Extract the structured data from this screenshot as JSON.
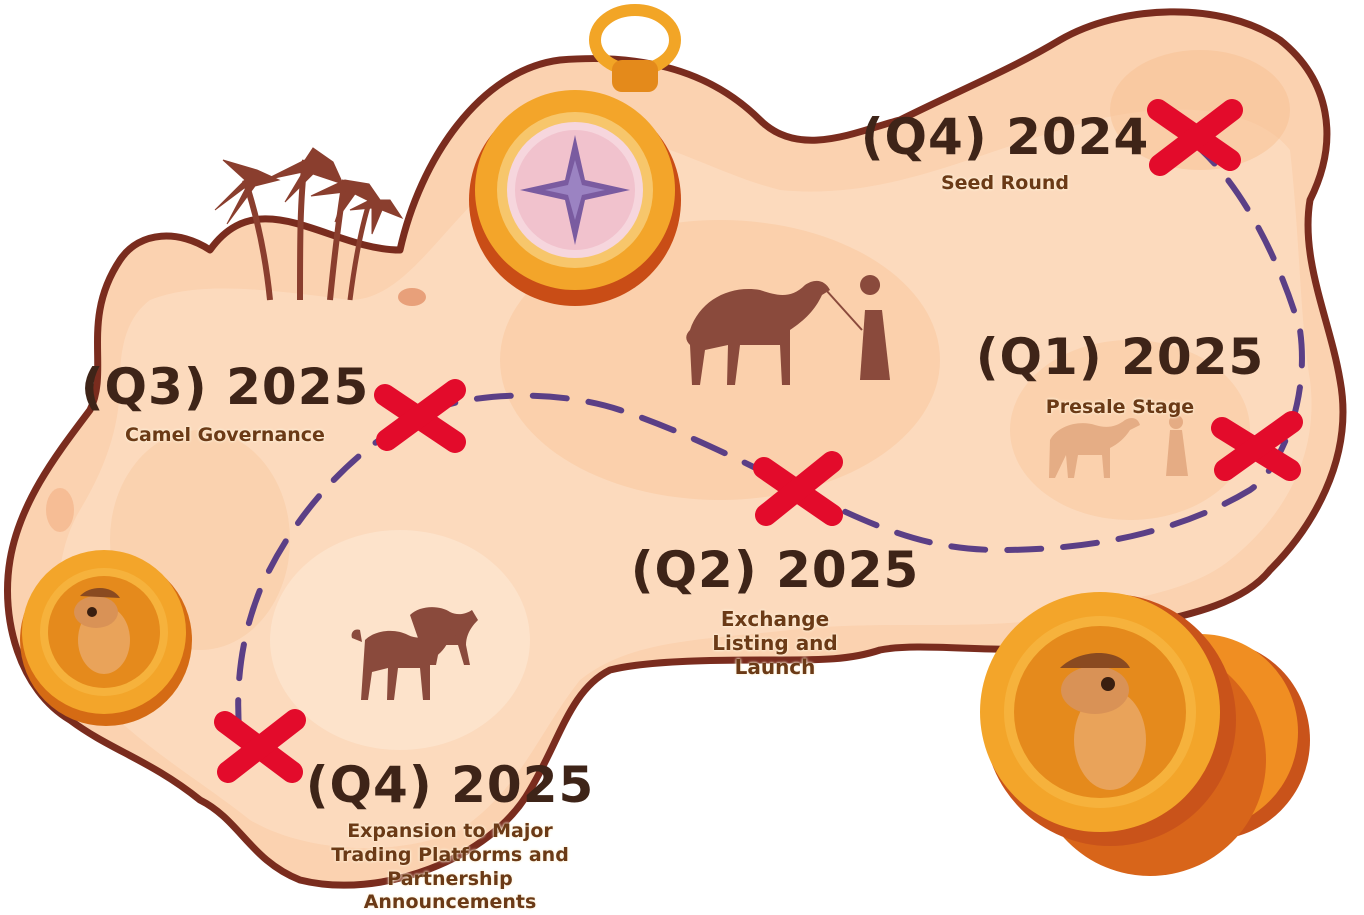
{
  "roadmap": {
    "milestones": [
      {
        "quarter": "(Q4) 2024",
        "description": "Seed Round"
      },
      {
        "quarter": "(Q1) 2025",
        "description": "Presale Stage"
      },
      {
        "quarter": "(Q2) 2025",
        "description": "Exchange Listing and Launch"
      },
      {
        "quarter": "(Q3) 2025",
        "description": "Camel Governance"
      },
      {
        "quarter": "(Q4) 2025",
        "description": "Expansion to Major Trading Platforms and Partnership Announcements"
      }
    ]
  },
  "colors": {
    "map_fill": "#fbd2b0",
    "map_border": "#7a2c1e",
    "path": "#5b3f86",
    "marker": "#e30b2b",
    "coin_gold": "#f3a52a",
    "text_dark": "#3e2418"
  },
  "icons": [
    "compass-icon",
    "palm-trees-icon",
    "camel-caravan-icon",
    "camel-coin-icon",
    "x-marker-icon"
  ]
}
